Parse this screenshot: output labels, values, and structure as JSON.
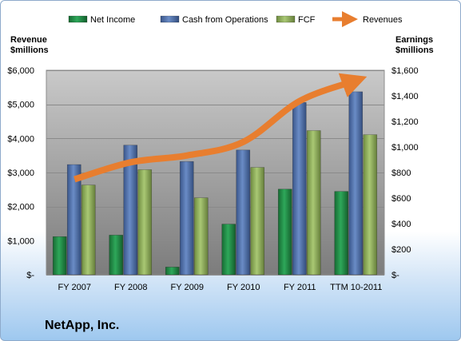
{
  "company": "NetApp, Inc.",
  "chart_data": {
    "type": "bar",
    "categories": [
      "FY 2007",
      "FY 2008",
      "FY 2009",
      "FY 2010",
      "FY 2011",
      "TTM 10-2011"
    ],
    "series": [
      {
        "name": "Net Income",
        "axis": "right",
        "color": "#1e8a43",
        "values": [
          298,
          310,
          60,
          396,
          670,
          652
        ]
      },
      {
        "name": "Cash from Operations",
        "axis": "right",
        "color": "#4f6ea6",
        "values": [
          862,
          1014,
          886,
          976,
          1348,
          1432
        ]
      },
      {
        "name": "FCF",
        "axis": "right",
        "color": "#8fae5a",
        "values": [
          702,
          822,
          602,
          840,
          1128,
          1096
        ]
      },
      {
        "name": "Revenues",
        "axis": "left",
        "type": "line",
        "color": "#e87e2f",
        "values": [
          2800,
          3300,
          3500,
          3900,
          5100,
          5700
        ]
      }
    ],
    "left_axis": {
      "title_lines": [
        "Revenue",
        "$millions"
      ],
      "ylim": [
        0,
        6000
      ],
      "ticks": [
        0,
        1000,
        2000,
        3000,
        4000,
        5000,
        6000
      ],
      "tick_labels": [
        "$-",
        "$1,000",
        "$2,000",
        "$3,000",
        "$4,000",
        "$5,000",
        "$6,000"
      ]
    },
    "right_axis": {
      "title_lines": [
        "Earnings",
        "$millions"
      ],
      "ylim": [
        0,
        1600
      ],
      "ticks": [
        0,
        200,
        400,
        600,
        800,
        1000,
        1200,
        1400,
        1600
      ],
      "tick_labels": [
        "$-",
        "$200",
        "$400",
        "$600",
        "$800",
        "$1,000",
        "$1,200",
        "$1,400",
        "$1,600"
      ]
    },
    "legend_position": "top",
    "grid": true
  }
}
